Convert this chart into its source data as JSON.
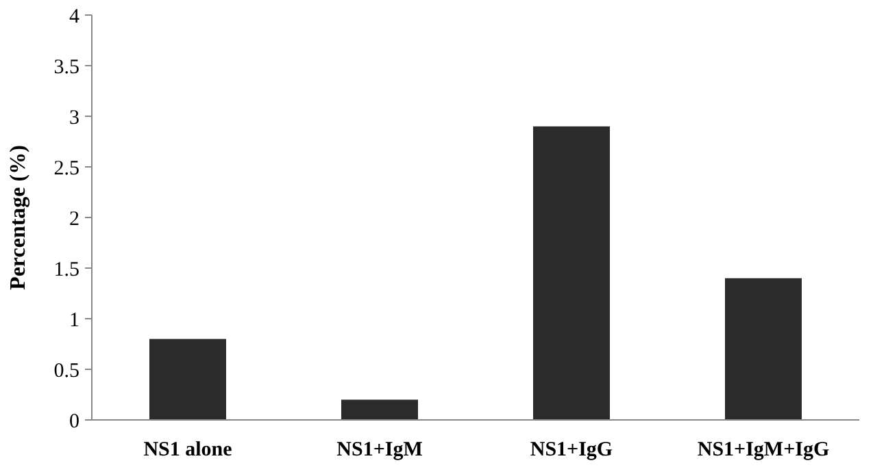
{
  "chart_data": {
    "type": "bar",
    "ylabel": "Percentage (%)",
    "categories": [
      "NS1 alone",
      "NS1+IgM",
      "NS1+IgG",
      "NS1+IgM+IgG"
    ],
    "values": [
      0.8,
      0.2,
      2.9,
      1.4
    ],
    "color": "#2b2b2b",
    "ylim": [
      0,
      4
    ],
    "yticks": [
      0,
      0.5,
      1,
      1.5,
      2,
      2.5,
      3,
      3.5,
      4
    ],
    "grid": false
  }
}
